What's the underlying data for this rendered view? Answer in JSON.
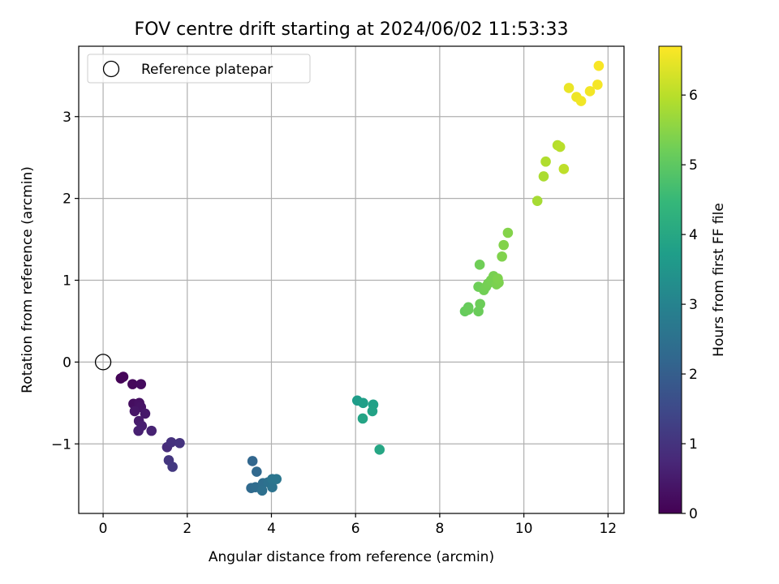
{
  "chart_data": {
    "type": "scatter",
    "title": "FOV centre drift starting at 2024/06/02 11:53:33",
    "xlabel": "Angular distance from reference (arcmin)",
    "ylabel": "Rotation from reference (arcmin)",
    "xlim": [
      -0.58,
      12.38
    ],
    "ylim": [
      -1.85,
      3.86
    ],
    "xticks": [
      0,
      2,
      4,
      6,
      8,
      10,
      12
    ],
    "xtick_labels": [
      "0",
      "2",
      "4",
      "6",
      "8",
      "10",
      "12"
    ],
    "yticks": [
      -1,
      0,
      1,
      2,
      3
    ],
    "ytick_labels": [
      "−1",
      "0",
      "1",
      "2",
      "3"
    ],
    "grid": true,
    "legend": {
      "position": "upper-left",
      "entries": [
        "Reference platepar"
      ]
    },
    "reference_point": {
      "x": 0,
      "y": 0,
      "marker": "hollow-circle"
    },
    "colorbar": {
      "label": "Hours from first FF file",
      "range": [
        0,
        6.7
      ],
      "ticks": [
        0,
        1,
        2,
        3,
        4,
        5,
        6
      ],
      "tick_labels": [
        "0",
        "1",
        "2",
        "3",
        "4",
        "5",
        "6"
      ],
      "colormap": "viridis"
    },
    "colormap_stops": [
      "#440154",
      "#482878",
      "#3e4989",
      "#31688e",
      "#26828e",
      "#1f9e89",
      "#35b779",
      "#6ece58",
      "#b5de2b",
      "#fde725"
    ],
    "points": [
      {
        "x": 0.42,
        "y": -0.2,
        "c": 0.05
      },
      {
        "x": 0.48,
        "y": -0.18,
        "c": 0.1
      },
      {
        "x": 0.7,
        "y": -0.27,
        "c": 0.15
      },
      {
        "x": 0.9,
        "y": -0.27,
        "c": 0.2
      },
      {
        "x": 0.72,
        "y": -0.51,
        "c": 0.25
      },
      {
        "x": 0.86,
        "y": -0.5,
        "c": 0.3
      },
      {
        "x": 0.9,
        "y": -0.55,
        "c": 0.35
      },
      {
        "x": 0.75,
        "y": -0.6,
        "c": 0.4
      },
      {
        "x": 1.0,
        "y": -0.63,
        "c": 0.45
      },
      {
        "x": 0.85,
        "y": -0.72,
        "c": 0.5
      },
      {
        "x": 0.92,
        "y": -0.78,
        "c": 0.55
      },
      {
        "x": 0.84,
        "y": -0.84,
        "c": 0.6
      },
      {
        "x": 1.15,
        "y": -0.84,
        "c": 0.65
      },
      {
        "x": 1.52,
        "y": -1.04,
        "c": 0.85
      },
      {
        "x": 1.62,
        "y": -0.98,
        "c": 0.95
      },
      {
        "x": 1.82,
        "y": -0.99,
        "c": 1.0
      },
      {
        "x": 1.56,
        "y": -1.2,
        "c": 1.05
      },
      {
        "x": 1.65,
        "y": -1.28,
        "c": 1.1
      },
      {
        "x": 3.55,
        "y": -1.21,
        "c": 2.2
      },
      {
        "x": 3.65,
        "y": -1.34,
        "c": 2.25
      },
      {
        "x": 3.52,
        "y": -1.54,
        "c": 2.3
      },
      {
        "x": 3.62,
        "y": -1.53,
        "c": 2.35
      },
      {
        "x": 3.8,
        "y": -1.48,
        "c": 2.4
      },
      {
        "x": 3.78,
        "y": -1.57,
        "c": 2.45
      },
      {
        "x": 3.92,
        "y": -1.47,
        "c": 2.5
      },
      {
        "x": 4.02,
        "y": -1.53,
        "c": 2.55
      },
      {
        "x": 4.02,
        "y": -1.43,
        "c": 2.6
      },
      {
        "x": 4.12,
        "y": -1.43,
        "c": 2.62
      },
      {
        "x": 6.04,
        "y": -0.47,
        "c": 3.7
      },
      {
        "x": 6.18,
        "y": -0.5,
        "c": 3.75
      },
      {
        "x": 6.42,
        "y": -0.52,
        "c": 3.8
      },
      {
        "x": 6.4,
        "y": -0.6,
        "c": 3.85
      },
      {
        "x": 6.17,
        "y": -0.69,
        "c": 3.9
      },
      {
        "x": 6.57,
        "y": -1.07,
        "c": 3.95
      },
      {
        "x": 8.6,
        "y": 0.62,
        "c": 5.1
      },
      {
        "x": 8.68,
        "y": 0.67,
        "c": 5.12
      },
      {
        "x": 8.68,
        "y": 0.64,
        "c": 5.14
      },
      {
        "x": 8.92,
        "y": 0.62,
        "c": 5.16
      },
      {
        "x": 8.96,
        "y": 0.71,
        "c": 5.18
      },
      {
        "x": 8.92,
        "y": 0.92,
        "c": 5.2
      },
      {
        "x": 8.95,
        "y": 1.19,
        "c": 5.22
      },
      {
        "x": 9.05,
        "y": 0.88,
        "c": 5.24
      },
      {
        "x": 9.1,
        "y": 0.92,
        "c": 5.26
      },
      {
        "x": 9.15,
        "y": 0.96,
        "c": 5.28
      },
      {
        "x": 9.22,
        "y": 1.0,
        "c": 5.3
      },
      {
        "x": 9.28,
        "y": 1.05,
        "c": 5.32
      },
      {
        "x": 9.35,
        "y": 0.95,
        "c": 5.34
      },
      {
        "x": 9.4,
        "y": 0.97,
        "c": 5.36
      },
      {
        "x": 9.38,
        "y": 1.02,
        "c": 5.38
      },
      {
        "x": 9.48,
        "y": 1.29,
        "c": 5.4
      },
      {
        "x": 9.52,
        "y": 1.43,
        "c": 5.42
      },
      {
        "x": 9.62,
        "y": 1.58,
        "c": 5.44
      },
      {
        "x": 10.32,
        "y": 1.97,
        "c": 5.8
      },
      {
        "x": 10.47,
        "y": 2.27,
        "c": 5.85
      },
      {
        "x": 10.52,
        "y": 2.45,
        "c": 5.9
      },
      {
        "x": 10.8,
        "y": 2.65,
        "c": 5.95
      },
      {
        "x": 10.86,
        "y": 2.63,
        "c": 6.0
      },
      {
        "x": 10.95,
        "y": 2.36,
        "c": 6.05
      },
      {
        "x": 11.07,
        "y": 3.35,
        "c": 6.5
      },
      {
        "x": 11.25,
        "y": 3.24,
        "c": 6.55
      },
      {
        "x": 11.36,
        "y": 3.19,
        "c": 6.58
      },
      {
        "x": 11.57,
        "y": 3.31,
        "c": 6.6
      },
      {
        "x": 11.75,
        "y": 3.39,
        "c": 6.62
      },
      {
        "x": 11.78,
        "y": 3.62,
        "c": 6.65
      }
    ]
  }
}
